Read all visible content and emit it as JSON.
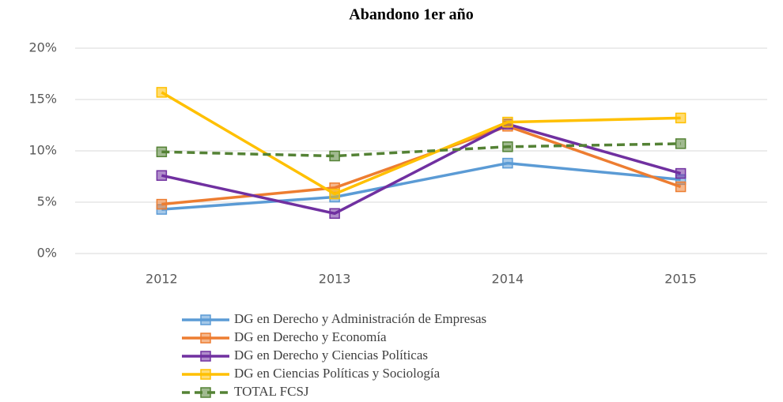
{
  "chart_data": {
    "type": "line",
    "title": "Abandono 1er año",
    "categories": [
      "2012",
      "2013",
      "2014",
      "2015"
    ],
    "series": [
      {
        "name": "DG en Derecho y Administración de Empresas",
        "color": "#5b9bd5",
        "values": [
          4.3,
          5.5,
          8.8,
          7.2
        ]
      },
      {
        "name": "DG en Derecho y Economía",
        "color": "#ed7d31",
        "values": [
          4.8,
          6.4,
          12.4,
          6.5
        ]
      },
      {
        "name": "DG en Derecho y Ciencias Políticas",
        "color": "#7030a0",
        "values": [
          7.6,
          3.9,
          12.6,
          7.8
        ]
      },
      {
        "name": "DG en Ciencias Políticas y Sociología",
        "color": "#ffc000",
        "values": [
          15.7,
          5.8,
          12.8,
          13.2
        ]
      },
      {
        "name": "TOTAL FCSJ",
        "color": "#548235",
        "dashed": true,
        "values": [
          9.9,
          9.5,
          10.4,
          10.7
        ]
      }
    ],
    "ylim": [
      0,
      20
    ],
    "yticks": [
      {
        "value": 0,
        "label": "0%"
      },
      {
        "value": 5,
        "label": "5%"
      },
      {
        "value": 10,
        "label": "10%"
      },
      {
        "value": 15,
        "label": "15%"
      },
      {
        "value": 20,
        "label": "20%"
      }
    ],
    "grid": true
  }
}
